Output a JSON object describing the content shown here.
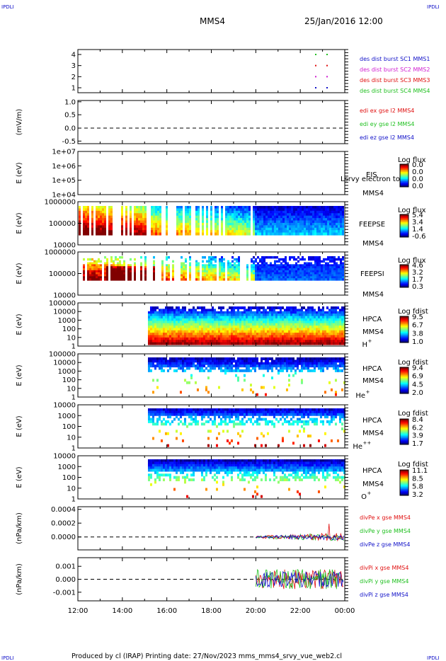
{
  "header": {
    "corner_tl": "IPDLI",
    "corner_tr": "IPDLI",
    "spacecraft": "MMS4",
    "datetime": "25/Jan/2016 12:00"
  },
  "footer": {
    "credit": "Produced by cl (IRAP)   Printing date: 27/Nov/2023   mms_mms4_srvy_vue_web2.cl",
    "corner_bl": "IPDLI",
    "corner_br": "IPDLI"
  },
  "colors": {
    "blue": "#1010c8",
    "magenta": "#d020d0",
    "red": "#e01010",
    "green": "#20c020",
    "ink": "#000000"
  },
  "chart_data": [
    {
      "id": "des-burst",
      "type": "scatter",
      "y_ticks": [
        "4",
        "3",
        "2",
        "1"
      ],
      "ylim": [
        0.5,
        4.5
      ],
      "series": [
        {
          "name": "des dist burst SC1 MMS1",
          "color": "#1010c8",
          "y": 1
        },
        {
          "name": "des dist burst SC2 MMS2",
          "color": "#d020d0",
          "y": 2
        },
        {
          "name": "des dist burst SC3 MMS3",
          "color": "#e01010",
          "y": 3
        },
        {
          "name": "des dist burst SC4 MMS4",
          "color": "#20c020",
          "y": 4
        }
      ],
      "x_points": [
        "23:20",
        "23:40"
      ]
    },
    {
      "id": "edi-e",
      "type": "line",
      "ylabel": "(mV/m)",
      "y_ticks": [
        "1.0",
        "0.5",
        "0.0",
        "-0.5"
      ],
      "ylim": [
        -0.5,
        1.0
      ],
      "series": [
        {
          "name": "edi ex gse l2 MMS4",
          "color": "#e01010"
        },
        {
          "name": "edi ey gse l2 MMS4",
          "color": "#20c020"
        },
        {
          "name": "edi ez gse l2 MMS4",
          "color": "#1010c8"
        }
      ]
    },
    {
      "id": "eis",
      "type": "heatmap",
      "ylabel": "E (eV)",
      "y_ticks": [
        "1e+07",
        "1e+06",
        "1e+05",
        "1e+04"
      ],
      "label_instrument": "EIS",
      "label_overlay": "Lsrvy electron to",
      "label_sc": "MMS4",
      "colorbar_title": "Log flux",
      "colorbar_ticks": [
        "0.0",
        "0.0",
        "0.0",
        "0.0"
      ]
    },
    {
      "id": "feepse",
      "type": "heatmap",
      "ylabel": "E (eV)",
      "y_ticks": [
        "1000000",
        "100000",
        "10000"
      ],
      "label_instrument": "FEEPSE",
      "label_sc": "MMS4",
      "colorbar_title": "Log flux",
      "colorbar_ticks": [
        "5.4",
        "3.4",
        "1.4",
        "-0.6"
      ]
    },
    {
      "id": "feepsi",
      "type": "heatmap",
      "ylabel": "E (eV)",
      "y_ticks": [
        "1000000",
        "100000",
        "10000"
      ],
      "label_instrument": "FEEPSI",
      "label_sc": "MMS4",
      "colorbar_title": "Log flux",
      "colorbar_ticks": [
        "4.6",
        "3.2",
        "1.7",
        "0.3"
      ]
    },
    {
      "id": "hpca-h",
      "type": "heatmap",
      "ylabel": "E (eV)",
      "y_ticks": [
        "100000",
        "10000",
        "1000",
        "100",
        "10",
        "1"
      ],
      "label_instrument": "HPCA",
      "label_sc": "MMS4",
      "label_species": "H",
      "label_charge": "+",
      "colorbar_title": "Log fdist",
      "colorbar_ticks": [
        "9.5",
        "6.7",
        "3.8",
        "1.0"
      ]
    },
    {
      "id": "hpca-he",
      "type": "heatmap",
      "ylabel": "E (eV)",
      "y_ticks": [
        "100000",
        "10000",
        "1000",
        "100",
        "10",
        "1"
      ],
      "label_instrument": "HPCA",
      "label_sc": "MMS4",
      "label_species": "He",
      "label_charge": "+",
      "colorbar_title": "Log fdist",
      "colorbar_ticks": [
        "9.4",
        "6.9",
        "4.5",
        "2.0"
      ]
    },
    {
      "id": "hpca-hepp",
      "type": "heatmap",
      "ylabel": "E (eV)",
      "y_ticks": [
        "10000",
        "1000",
        "100",
        "10",
        "1"
      ],
      "label_instrument": "HPCA",
      "label_sc": "MMS4",
      "label_species": "He",
      "label_charge": "++",
      "colorbar_title": "Log fdist",
      "colorbar_ticks": [
        "8.4",
        "6.2",
        "3.9",
        "1.7"
      ]
    },
    {
      "id": "hpca-o",
      "type": "heatmap",
      "ylabel": "E (eV)",
      "y_ticks": [
        "10000",
        "1000",
        "100",
        "10",
        "1"
      ],
      "label_instrument": "HPCA",
      "label_sc": "MMS4",
      "label_species": "O",
      "label_charge": "+",
      "colorbar_title": "Log fdist",
      "colorbar_ticks": [
        "11.1",
        "8.5",
        "5.8",
        "3.2"
      ]
    },
    {
      "id": "divpe",
      "type": "line",
      "ylabel": "(nPa/km)",
      "y_ticks": [
        "0.0004",
        "0.0002",
        "0.0000"
      ],
      "ylim": [
        -0.0001,
        0.00045
      ],
      "series": [
        {
          "name": "divPe x gse MMS4",
          "color": "#e01010"
        },
        {
          "name": "divPe y gse MMS4",
          "color": "#20c020"
        },
        {
          "name": "divPe z gse MMS4",
          "color": "#1010c8"
        }
      ],
      "x_start": "20:00"
    },
    {
      "id": "divpi",
      "type": "line",
      "ylabel": "(nPa/km)",
      "y_ticks": [
        "0.001",
        "0.000",
        "-0.001"
      ],
      "ylim": [
        -0.0015,
        0.0015
      ],
      "series": [
        {
          "name": "divPi x gse MMS4",
          "color": "#e01010"
        },
        {
          "name": "divPi y gse MMS4",
          "color": "#20c020"
        },
        {
          "name": "divPi z gse MMS4",
          "color": "#1010c8"
        }
      ],
      "x_start": "20:00"
    }
  ],
  "x_axis": {
    "ticks": [
      "12:00",
      "14:00",
      "16:00",
      "18:00",
      "20:00",
      "22:00",
      "00:00"
    ]
  }
}
